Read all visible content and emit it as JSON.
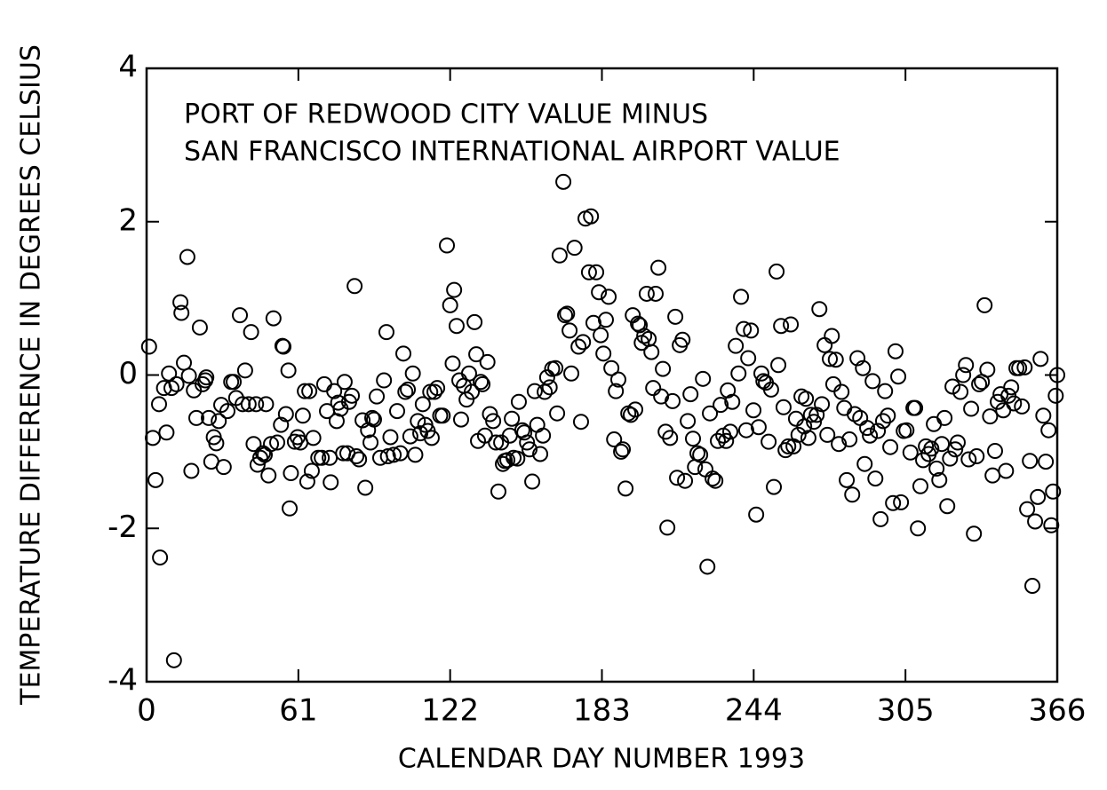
{
  "chart_data": {
    "type": "scatter",
    "annotations": [
      "PORT OF REDWOOD CITY VALUE MINUS",
      "SAN FRANCISCO INTERNATIONAL AIRPORT VALUE"
    ],
    "x_label": "CALENDAR DAY NUMBER 1993",
    "y_label": "TEMPERATURE DIFFERENCE IN DEGREES CELSIUS",
    "xlim": [
      0,
      366
    ],
    "ylim": [
      -4,
      4
    ],
    "xticks": [
      0,
      61,
      122,
      183,
      244,
      305,
      366
    ],
    "yticks": [
      -4,
      -2,
      0,
      2,
      4
    ],
    "grid": false,
    "color": "#000000",
    "x": [
      1,
      2.5,
      3.6,
      5,
      5.4,
      7,
      8,
      9,
      10,
      11,
      12,
      13.6,
      14,
      15,
      16.4,
      17,
      18,
      19,
      20,
      21.4,
      22.5,
      23.6,
      24,
      25,
      26,
      27,
      28,
      29,
      30,
      31,
      32.5,
      34,
      35,
      36,
      37.5,
      38.6,
      39.6,
      41,
      42,
      43,
      44,
      44.6,
      45.7,
      46.8,
      47.5,
      48,
      49,
      50,
      51,
      52.5,
      54,
      54.6,
      55,
      56,
      57,
      57.5,
      58,
      59.6,
      60.7,
      61.8,
      62.8,
      63.6,
      64.6,
      65.4,
      66.4,
      67,
      69,
      70.4,
      71.4,
      72.5,
      73.6,
      74,
      75.4,
      76.4,
      77,
      78,
      79,
      79.6,
      80.7,
      81.4,
      82.5,
      83.6,
      84.3,
      85.4,
      86.8,
      87.9,
      89,
      90,
      90.7,
      91.4,
      92.5,
      93.9,
      95.4,
      96.4,
      97,
      98,
      99.3,
      100.7,
      102,
      103.2,
      104,
      105,
      106,
      107,
      108,
      109,
      110,
      111,
      112,
      113,
      114,
      114.6,
      115.7,
      116.8,
      118,
      119,
      120.7,
      122,
      123,
      123.6,
      124.6,
      125.7,
      126.4,
      127.5,
      128.6,
      129.6,
      130.7,
      131.8,
      132.5,
      133.2,
      134.3,
      135,
      136,
      137,
      138,
      139.3,
      140.4,
      141.4,
      142.5,
      143.2,
      144,
      145,
      146,
      146.8,
      147.5,
      149,
      149.6,
      151,
      151.8,
      152.9,
      153.9,
      155,
      156,
      157,
      158.2,
      159.3,
      160,
      161,
      162,
      163,
      164.3,
      165,
      166,
      167.5,
      168.2,
      169,
      170,
      170.7,
      172,
      173.6,
      174.6,
      175.4,
      176.4,
      178.6,
      177.8,
      179.6,
      180.7,
      181.8,
      182.5,
      183.6,
      184.6,
      185.7,
      186.8,
      187.9,
      188.6,
      189.6,
      190.7,
      191.4,
      192.5,
      193.6,
      194.6,
      195.4,
      196.4,
      197.5,
      198.2,
      199,
      200,
      201,
      201.8,
      202.9,
      203.6,
      204.6,
      205.7,
      206.8,
      207.5,
      208.6,
      209.3,
      210.4,
      211.4,
      212.5,
      213.2,
      214.3,
      215.4,
      216.4,
      217.5,
      218.6,
      219.6,
      220.4,
      221.4,
      222.5,
      223.6,
      224.6,
      225.4,
      226.4,
      227.5,
      228.6,
      229.6,
      230.7,
      231.8,
      232.9,
      233.6,
      234.6,
      235.4,
      236.8,
      237.9,
      238.9,
      240,
      241,
      241.8,
      242.9,
      243.9,
      245,
      246,
      247.1,
      247.9,
      248.9,
      250,
      251,
      252.1,
      253.2,
      253.9,
      255,
      256,
      256.8,
      257.9,
      258.9,
      260,
      261,
      262,
      263.2,
      264.3,
      265,
      266,
      267,
      268.2,
      269.3,
      270.4,
      271.4,
      272.5,
      273.6,
      274.6,
      275.4,
      276,
      277,
      278.2,
      279.3,
      280.4,
      281.4,
      282.5,
      283.6,
      284.6,
      285.7,
      286.8,
      287.9,
      288.6,
      289.6,
      290.7,
      291.8,
      292.9,
      293.9,
      295,
      296,
      296.8,
      297.9,
      298.9,
      300,
      301,
      302.1,
      303.2,
      304.3,
      305.4,
      307,
      308.2,
      308.9,
      310,
      311,
      312.1,
      313.2,
      314.3,
      315.4,
      316.4,
      317.5,
      318.6,
      319.6,
      320.7,
      321.8,
      322.9,
      323.9,
      325,
      326,
      327.1,
      328.2,
      329.3,
      330.4,
      331.4,
      332.5,
      333.6,
      334.6,
      335.7,
      336.8,
      337.9,
      339,
      340,
      341,
      342.1,
      343.2,
      344.3,
      345.4,
      346.4,
      347.5,
      348.6,
      349.6,
      350.7,
      351.8,
      352.9,
      353.9,
      355,
      356,
      357.1,
      358.2,
      359.3,
      360.4,
      361.4,
      362.5,
      363.6,
      364.3,
      365.4,
      366
    ],
    "values": [
      0.37,
      -0.82,
      -1.37,
      -0.38,
      -2.38,
      -0.17,
      -0.75,
      0.02,
      -0.17,
      -3.72,
      -0.12,
      0.95,
      0.81,
      0.16,
      1.54,
      -0.01,
      -1.25,
      -0.2,
      -0.56,
      0.62,
      -0.12,
      -0.07,
      -0.03,
      -0.56,
      -1.13,
      -0.81,
      -0.89,
      -0.6,
      -0.39,
      -1.2,
      -0.47,
      -0.09,
      -0.09,
      -0.3,
      0.78,
      -0.38,
      0.06,
      -0.38,
      0.56,
      -0.9,
      -0.38,
      -1.17,
      -1.08,
      -1.02,
      -1.04,
      -0.38,
      -1.31,
      -0.9,
      0.74,
      -0.88,
      -0.65,
      0.38,
      0.37,
      -0.51,
      0.06,
      -1.74,
      -1.28,
      -0.87,
      -0.81,
      -0.88,
      -0.53,
      -0.21,
      -1.39,
      -0.21,
      -1.25,
      -0.82,
      -1.08,
      -1.08,
      -0.12,
      -0.47,
      -1.08,
      -1.4,
      -0.21,
      -0.6,
      -0.36,
      -0.44,
      -1.02,
      -0.09,
      -1.02,
      -0.35,
      -0.27,
      1.16,
      -1.06,
      -1.1,
      -0.59,
      -1.47,
      -0.72,
      -0.88,
      -0.56,
      -0.58,
      -0.28,
      -1.08,
      -0.07,
      0.56,
      -1.06,
      -0.81,
      -1.04,
      -0.47,
      -1.02,
      0.28,
      -0.22,
      -0.19,
      -0.8,
      0.02,
      -1.04,
      -0.6,
      -0.76,
      -0.38,
      -0.65,
      -0.73,
      -0.22,
      -0.82,
      -0.22,
      -0.17,
      -0.53,
      -0.53,
      1.69,
      0.91,
      0.15,
      1.11,
      0.64,
      -0.07,
      -0.58,
      -0.14,
      -0.32,
      0.02,
      -0.22,
      0.69,
      0.27,
      -0.86,
      -0.09,
      -0.12,
      -0.79,
      0.17,
      -0.51,
      -0.6,
      -0.88,
      -1.52,
      -0.88,
      -1.16,
      -1.12,
      -1.11,
      -0.79,
      -0.57,
      -1.08,
      -1.09,
      -0.35,
      -0.72,
      -0.75,
      -0.88,
      -0.97,
      -1.39,
      -0.21,
      -0.65,
      -1.03,
      -0.79,
      -0.22,
      -0.03,
      -0.16,
      0.08,
      0.09,
      -0.5,
      1.56,
      2.52,
      0.78,
      0.8,
      0.58,
      0.02,
      1.66,
      0.37,
      -0.61,
      0.43,
      2.04,
      2.07,
      1.34,
      0.68,
      1.34,
      1.08,
      0.52,
      0.28,
      0.72,
      1.02,
      0.09,
      -0.84,
      -0.21,
      -0.06,
      -1.0,
      -0.97,
      -1.48,
      -0.5,
      -0.52,
      0.78,
      -0.45,
      0.67,
      0.65,
      0.42,
      0.51,
      1.06,
      0.47,
      0.3,
      -0.17,
      1.06,
      1.4,
      -0.28,
      0.08,
      -0.74,
      -1.99,
      -0.82,
      -0.34,
      0.76,
      -1.34,
      0.39,
      0.46,
      -1.38,
      -0.6,
      -0.25,
      -0.83,
      -1.2,
      -1.02,
      -1.04,
      -0.05,
      -1.23,
      -2.5,
      -0.5,
      -1.35,
      -1.38,
      -0.86,
      -0.39,
      -0.79,
      -0.86,
      -0.2,
      -0.74,
      -0.35,
      0.38,
      0.02,
      1.02,
      0.6,
      -0.72,
      0.22,
      0.58,
      -0.46,
      -1.82,
      -0.68,
      0.02,
      -0.08,
      -0.1,
      -0.87,
      -0.19,
      -1.46,
      1.35,
      0.13,
      0.64,
      -0.42,
      -0.98,
      -0.93,
      0.66,
      -0.93,
      -0.57,
      -0.78,
      -0.28,
      -0.67,
      -0.31,
      -0.82,
      -0.52,
      -0.61,
      -0.52,
      0.86,
      -0.38,
      0.39,
      -0.78,
      0.21,
      0.51,
      -0.12,
      0.2,
      -0.9,
      -0.22,
      -0.43,
      -1.37,
      -0.84,
      -1.56,
      -0.51,
      0.22,
      -0.56,
      0.09,
      -1.16,
      -0.69,
      -0.79,
      -0.08,
      -1.35,
      -0.73,
      -1.88,
      -0.6,
      -0.21,
      -0.53,
      -0.94,
      -1.67,
      0.31,
      -0.02,
      -1.66,
      -0.73,
      -0.72,
      -1.01,
      -0.43,
      -0.43,
      -2.0,
      -1.45,
      -1.11,
      -0.93,
      -1.03,
      -0.96,
      -0.64,
      -1.22,
      -1.37,
      -0.9,
      -0.56,
      -1.71,
      -1.09,
      -0.15,
      -0.97,
      -0.88,
      -0.22,
      0.0,
      0.13,
      -1.1,
      -0.44,
      -2.07,
      -1.06,
      -0.12,
      -0.09,
      0.91,
      0.07,
      -0.54,
      -1.31,
      -0.99,
      -0.35,
      -0.25,
      -0.46,
      -1.25,
      -0.27,
      -0.16,
      -0.37,
      0.09,
      0.09,
      -0.41,
      0.1,
      -1.75,
      -1.12,
      -2.75,
      -1.91,
      -1.59,
      0.21,
      -0.53,
      -1.13,
      -0.72,
      -1.96,
      -1.52,
      -0.27,
      0.0
    ]
  }
}
